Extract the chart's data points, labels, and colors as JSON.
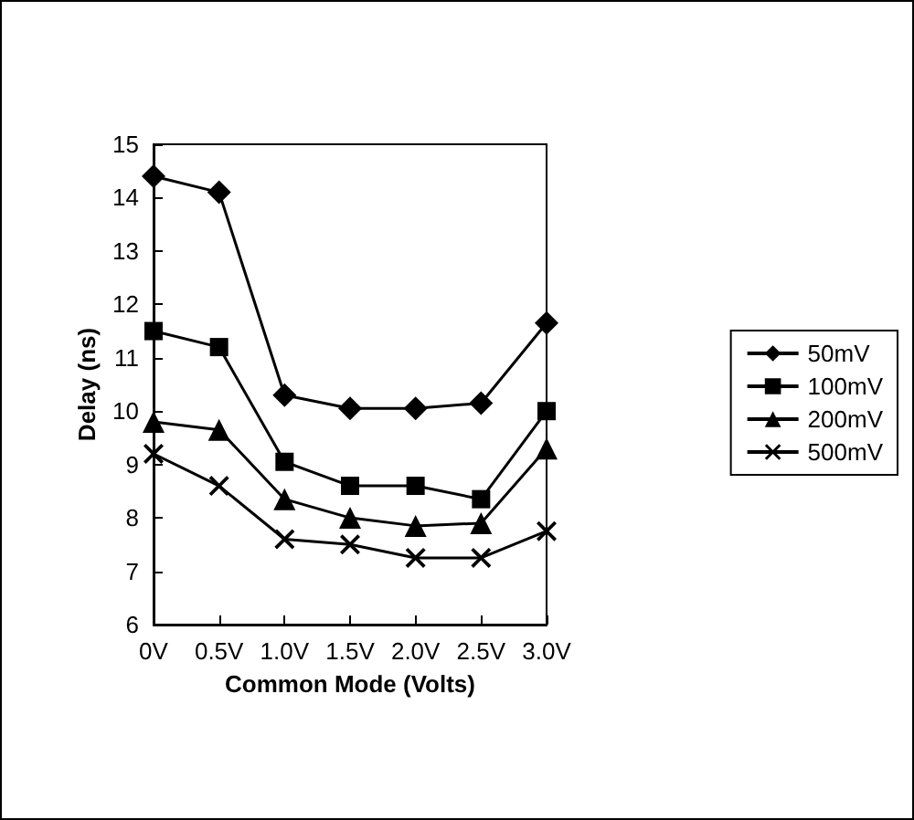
{
  "chart_data": {
    "type": "line",
    "xlabel": "Common Mode (Volts)",
    "ylabel": "Delay (ns)",
    "categories": [
      "0V",
      "0.5V",
      "1.0V",
      "1.5V",
      "2.0V",
      "2.5V",
      "3.0V"
    ],
    "ylim": [
      6,
      15
    ],
    "yticks": [
      6,
      7,
      8,
      9,
      10,
      11,
      12,
      13,
      14,
      15
    ],
    "grid": false,
    "legend": "right",
    "line_style": "solid",
    "series": [
      {
        "name": "50mV",
        "color": "#000000",
        "marker": "diamond",
        "values": [
          14.4,
          14.1,
          10.3,
          10.05,
          10.05,
          10.15,
          11.65
        ]
      },
      {
        "name": "100mV",
        "color": "#000000",
        "marker": "square",
        "values": [
          11.5,
          11.2,
          9.05,
          8.6,
          8.6,
          8.35,
          10.0
        ]
      },
      {
        "name": "200mV",
        "color": "#000000",
        "marker": "triangle",
        "values": [
          9.8,
          9.65,
          8.35,
          8.0,
          7.85,
          7.9,
          9.3
        ]
      },
      {
        "name": "500mV",
        "color": "#000000",
        "marker": "cross",
        "values": [
          9.2,
          8.6,
          7.6,
          7.5,
          7.25,
          7.25,
          7.75
        ]
      }
    ]
  }
}
